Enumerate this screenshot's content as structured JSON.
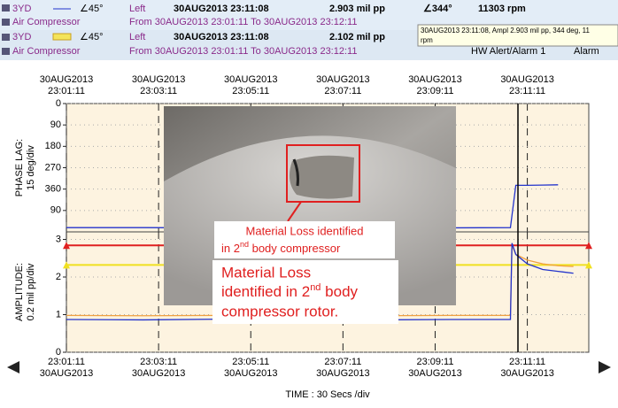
{
  "header": {
    "rows": [
      {
        "point": "3YD",
        "angle": "∠45°",
        "side": "Left",
        "time": "30AUG2013 23:11:08",
        "ampl": "2.903 mil  pp",
        "phase": "∠344°",
        "speed": "11303 rpm"
      },
      {
        "machine": "Air Compressor",
        "range": "From 30AUG2013 23:01:11 To 30AUG2013 23:12:11"
      },
      {
        "point": "3YD",
        "angle": "∠45°",
        "side": "Left",
        "time": "30AUG2013 23:11:08",
        "ampl": "2.102 mil  pp"
      },
      {
        "machine": "Air Compressor",
        "range": "From 30AUG2013 23:01:11 To 30AUG2013 23:12:11",
        "alert": "HW Alert/Alarm 1",
        "status": "Alarm"
      }
    ]
  },
  "tooltip": [
    "30AUG2013 23:11:08, Ampl 2.903 mil  pp, 344 deg, 11",
    "rpm"
  ],
  "time_axis": {
    "xlim": [
      0,
      680
    ],
    "label": "TIME : 30 Secs /div",
    "xticks": [
      {
        "value": 0,
        "date": "30AUG2013",
        "time": "23:01:11"
      },
      {
        "value": 120,
        "date": "30AUG2013",
        "time": "23:03:11"
      },
      {
        "value": 240,
        "date": "30AUG2013",
        "time": "23:05:11"
      },
      {
        "value": 360,
        "date": "30AUG2013",
        "time": "23:07:11"
      },
      {
        "value": 480,
        "date": "30AUG2013",
        "time": "23:09:11"
      },
      {
        "value": 600,
        "date": "30AUG2013",
        "time": "23:11:11"
      }
    ]
  },
  "panels": [
    {
      "ylabel": [
        "PHASE LAG:",
        "15 deg/div"
      ],
      "ylim": [
        0,
        540
      ],
      "inverted": true,
      "yticks": [
        0,
        90,
        180,
        270,
        360,
        {
          "value": 450,
          "label": "90"
        }
      ],
      "series": [
        {
          "color": "#2233cc",
          "x": [
            0,
            100,
            200,
            300,
            400,
            500,
            578,
            585,
            600,
            620,
            640
          ],
          "values": [
            522,
            522,
            523,
            522,
            522,
            523,
            522,
            344,
            344,
            343,
            342
          ]
        }
      ]
    },
    {
      "ylabel": [
        "AMPLITUDE:",
        "0.2 mil  pp/div"
      ],
      "ylim": [
        0,
        3.2
      ],
      "inverted": false,
      "yticks": [
        0,
        1,
        2,
        3
      ],
      "levels": [
        {
          "color": "#e02020",
          "value": 2.84
        },
        {
          "color": "#f0e020",
          "value": 2.32
        }
      ],
      "series": [
        {
          "color": "#f0a040",
          "x": [
            0,
            100,
            200,
            300,
            400,
            500,
            578,
            580,
            585,
            600,
            620,
            640,
            660
          ],
          "values": [
            0.98,
            0.97,
            0.98,
            0.99,
            0.97,
            0.98,
            0.98,
            2.85,
            2.6,
            2.45,
            2.35,
            2.3,
            2.28
          ]
        },
        {
          "color": "#2233cc",
          "x": [
            0,
            100,
            200,
            300,
            400,
            500,
            578,
            580,
            585,
            600,
            620,
            640,
            660
          ],
          "values": [
            0.87,
            0.86,
            0.88,
            0.87,
            0.86,
            0.87,
            0.87,
            2.9,
            2.6,
            2.35,
            2.2,
            2.15,
            2.1
          ]
        }
      ]
    }
  ],
  "annotations": {
    "small": [
      "Material Loss identified",
      "in 2",
      "nd",
      " body compressor"
    ],
    "large": [
      "Material Loss",
      "identified in 2",
      "nd",
      " body",
      "compressor rotor."
    ]
  }
}
